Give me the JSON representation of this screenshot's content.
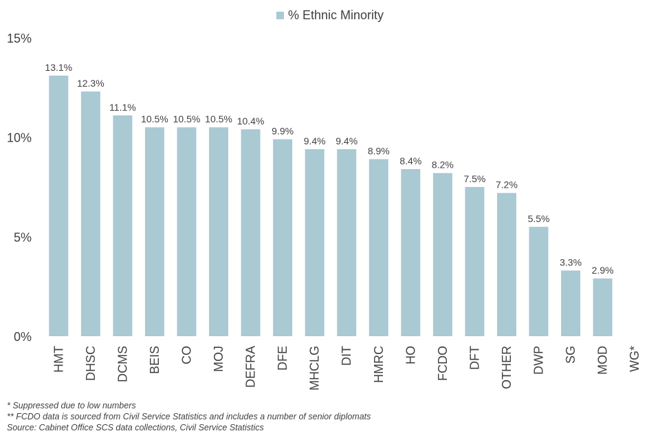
{
  "chart_data": {
    "type": "bar",
    "title": "",
    "xlabel": "",
    "ylabel": "",
    "legend": {
      "label": "% Ethnic Minority",
      "position": "top-center"
    },
    "series_color": "#a9c9d3",
    "ylim": [
      0,
      15
    ],
    "yticks": [
      0,
      5,
      10,
      15
    ],
    "ytick_labels": [
      "0%",
      "5%",
      "10%",
      "15%"
    ],
    "categories": [
      "HMT",
      "DHSC",
      "DCMS",
      "BEIS",
      "CO",
      "MOJ",
      "DEFRA",
      "DFE",
      "MHCLG",
      "DIT",
      "HMRC",
      "HO",
      "FCDO",
      "DFT",
      "OTHER",
      "DWP",
      "SG",
      "MOD",
      "WG*"
    ],
    "values": [
      13.1,
      12.3,
      11.1,
      10.5,
      10.5,
      10.5,
      10.4,
      9.9,
      9.4,
      9.4,
      8.9,
      8.4,
      8.2,
      7.5,
      7.2,
      5.5,
      3.3,
      2.9,
      null
    ],
    "data_labels": [
      "13.1%",
      "12.3%",
      "11.1%",
      "10.5%",
      "10.5%",
      "10.5%",
      "10.4%",
      "9.9%",
      "9.4%",
      "9.4%",
      "8.9%",
      "8.4%",
      "8.2%",
      "7.5%",
      "7.2%",
      "5.5%",
      "3.3%",
      "2.9%",
      ""
    ]
  },
  "footnotes": [
    "* Suppressed due to low numbers",
    "** FCDO data is sourced from Civil Service Statistics and includes a number of senior diplomats",
    "Source: Cabinet Office SCS data collections, Civil Service Statistics"
  ]
}
